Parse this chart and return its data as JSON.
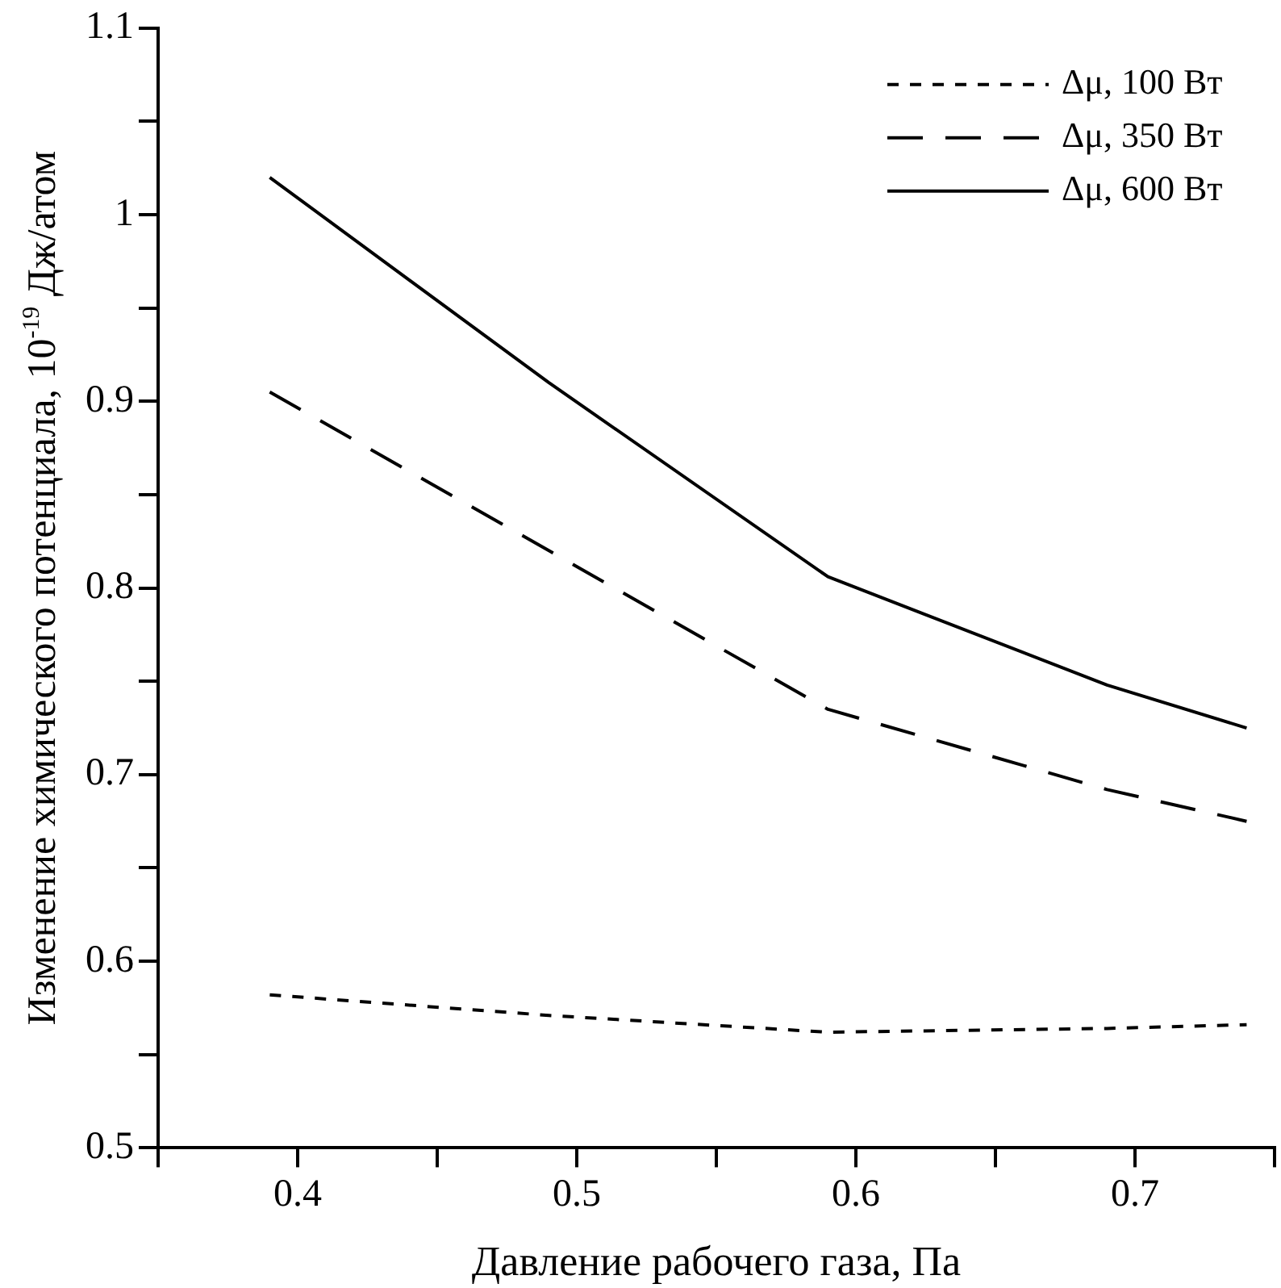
{
  "chart_data": {
    "type": "line",
    "xlabel": "Давление рабочего газа, Па",
    "ylabel": "Изменение химического потенциала, 10$^{-19}$ Дж/атом",
    "x": [
      0.39,
      0.49,
      0.59,
      0.69,
      0.74
    ],
    "series": [
      {
        "name": "Δμ, 100 Вт",
        "color": "#000000",
        "line_style": "dotted",
        "values": [
          0.582,
          0.571,
          0.562,
          0.564,
          0.566
        ]
      },
      {
        "name": "Δμ, 350 Вт",
        "color": "#000000",
        "line_style": "dashed",
        "values": [
          0.905,
          0.82,
          0.735,
          0.692,
          0.675
        ]
      },
      {
        "name": "Δμ, 600 Вт",
        "color": "#000000",
        "line_style": "solid",
        "values": [
          1.02,
          0.91,
          0.806,
          0.748,
          0.725
        ]
      }
    ],
    "xlim": [
      0.35,
      0.75
    ],
    "xticks": [
      {
        "value": 0.35,
        "label": null
      },
      0.4,
      {
        "value": 0.45,
        "label": null
      },
      0.5,
      {
        "value": 0.55,
        "label": null
      },
      0.6,
      {
        "value": 0.65,
        "label": null
      },
      0.7,
      {
        "value": 0.75,
        "label": null
      }
    ],
    "ylim": [
      0.5,
      1.1
    ],
    "yticks": [
      0.5,
      {
        "value": 0.55,
        "label": null
      },
      0.6,
      {
        "value": 0.65,
        "label": null
      },
      0.7,
      {
        "value": 0.75,
        "label": null
      },
      0.8,
      {
        "value": 0.85,
        "label": null
      },
      0.9,
      {
        "value": 0.95,
        "label": null
      },
      1,
      {
        "value": 1.05,
        "label": null
      },
      1.1
    ],
    "grid": false,
    "legend": "top right",
    "marker": "none"
  }
}
